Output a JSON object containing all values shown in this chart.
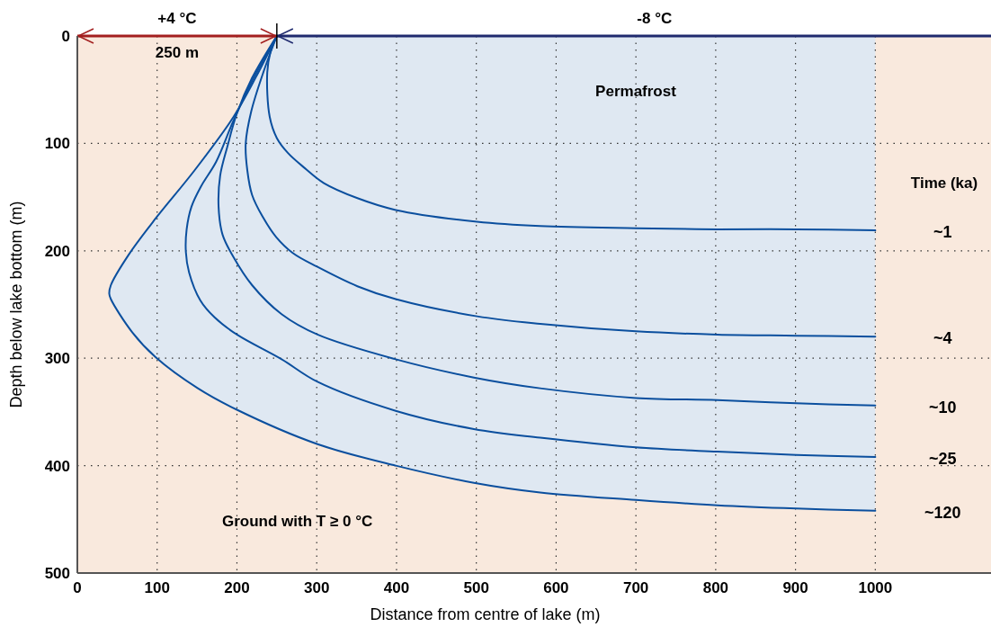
{
  "chart_data": {
    "type": "line",
    "xlabel": "Distance from centre of lake (m)",
    "ylabel": "Depth below lake bottom (m)",
    "legend_title": "Time (ka)",
    "xlim": [
      0,
      1145
    ],
    "xticks": [
      0,
      100,
      200,
      300,
      400,
      500,
      600,
      700,
      800,
      900,
      1000
    ],
    "ylim": [
      500,
      0
    ],
    "yticks": [
      0,
      100,
      200,
      300,
      400,
      500
    ],
    "grid": true,
    "series": [
      {
        "name": "~1",
        "color": "#0b4f9e",
        "x": [
          250,
          242,
          238,
          241,
          250,
          264,
          285,
          309,
          351,
          399,
          501,
          580,
          700,
          802,
          901,
          1000
        ],
        "values": [
          0,
          15,
          34,
          75,
          95,
          109,
          123,
          137,
          151,
          162,
          173,
          177,
          179,
          180,
          180,
          181
        ]
      },
      {
        "name": "~4",
        "color": "#0b4f9e",
        "x": [
          250,
          233,
          218,
          211,
          213,
          219,
          232,
          249,
          270,
          301,
          351,
          399,
          501,
          580,
          700,
          802,
          901,
          1000
        ],
        "values": [
          0,
          34,
          70,
          100,
          125,
          148,
          168,
          187,
          202,
          215,
          233,
          245,
          261,
          268,
          275,
          278,
          279,
          280
        ]
      },
      {
        "name": "~10",
        "color": "#0b4f9e",
        "x": [
          250,
          219,
          200,
          188,
          179,
          177,
          182,
          195,
          219,
          256,
          301,
          399,
          497,
          580,
          700,
          802,
          901,
          1000
        ],
        "values": [
          0,
          39,
          72,
          103,
          130,
          159,
          185,
          205,
          232,
          259,
          278,
          301,
          318,
          328,
          337,
          339,
          342,
          344
        ]
      },
      {
        "name": "~25",
        "color": "#0b4f9e",
        "x": [
          250,
          219,
          195,
          174,
          155,
          143,
          137,
          136,
          140,
          154,
          172,
          200,
          256,
          301,
          399,
          497,
          580,
          700,
          802,
          901,
          1000
        ],
        "values": [
          0,
          42,
          80,
          117,
          140,
          159,
          180,
          201,
          220,
          246,
          262,
          278,
          301,
          322,
          349,
          366,
          374,
          383,
          387,
          390,
          392
        ]
      },
      {
        "name": "~120",
        "type": "area",
        "color": "#0b4f9e",
        "x": [
          250,
          224,
          196,
          147,
          98,
          64,
          42,
          40,
          42,
          69,
          98,
          151,
          200,
          301,
          399,
          497,
          580,
          700,
          802,
          901,
          1000
        ],
        "values": [
          0,
          38,
          75,
          125,
          170,
          204,
          232,
          240,
          245,
          276,
          299,
          328,
          348,
          380,
          400,
          416,
          425,
          432,
          437,
          440,
          442
        ]
      }
    ],
    "annotations": [
      "+4 °C",
      "-8  °C",
      "250 m",
      "Permafrost",
      "Ground with T ≥ 0 °C"
    ]
  }
}
